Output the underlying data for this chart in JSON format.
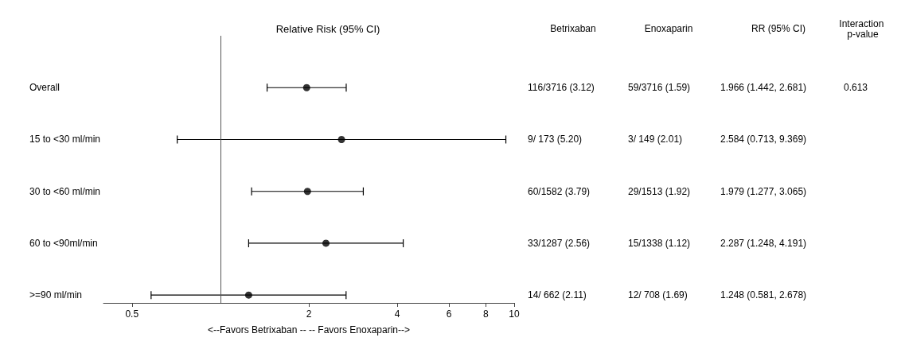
{
  "chart_data": {
    "type": "scatter",
    "orientation": "horizontal",
    "title": "Relative Risk (95% CI)",
    "xlabel": "<--Favors Betrixaban -- -- Favors Enoxaparin-->",
    "categories": [
      "Overall",
      "15 to <30 ml/min",
      "30 to <60 ml/min",
      "60 to <90ml/min",
      ">=90 ml/min"
    ],
    "values": [
      1.966,
      2.584,
      1.979,
      2.287,
      1.248
    ],
    "errors": [
      [
        1.442,
        2.681
      ],
      [
        0.713,
        9.369
      ],
      [
        1.277,
        3.065
      ],
      [
        1.248,
        4.191
      ],
      [
        0.581,
        2.678
      ]
    ],
    "value_labels": [
      "1.966 (1.442, 2.681)",
      "2.584 (0.713, 9.369)",
      "1.979 (1.277, 3.065)",
      "2.287 (1.248, 4.191)",
      "1.248 (0.581, 2.678)"
    ],
    "color": "#000000",
    "marker": "circle",
    "log": "x",
    "xlim": [
      0.4,
      10
    ],
    "xticks": [
      0.5,
      2,
      4,
      6,
      8,
      10
    ],
    "grid": false,
    "ref_lines": [
      {
        "axis": "x",
        "value": 1,
        "color": "#555555"
      }
    ],
    "annotations": [
      "Betrixaban",
      "Enoxaparin",
      "RR (95% CI)",
      "Interaction p-value",
      "116/3716 (3.12)",
      "59/3716 (1.59)",
      "9/ 173 (5.20)",
      "3/ 149 (2.01)",
      "60/1582 (3.79)",
      "29/1513 (1.92)",
      "33/1287 (2.56)",
      "15/1338 (1.12)",
      "14/ 662 (2.11)",
      "12/ 708 (1.69)",
      "0.613"
    ]
  }
}
